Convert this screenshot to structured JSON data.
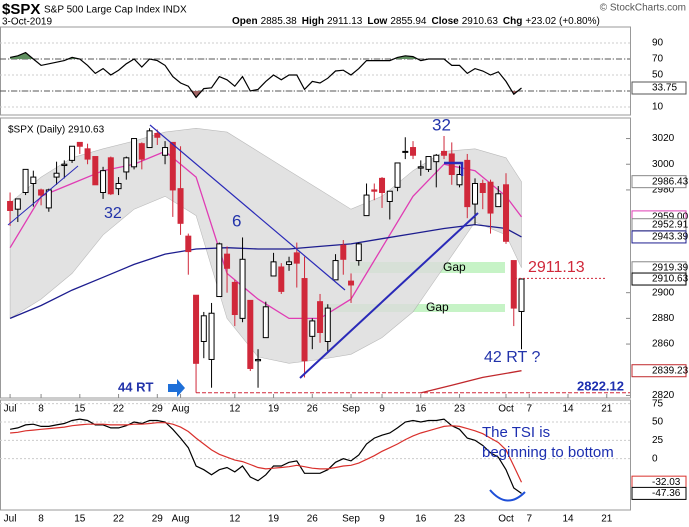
{
  "header": {
    "symbol": "$SPX",
    "name": "S&P 500 Large Cap Index INDX",
    "date": "3-Oct-2019",
    "quote": [
      [
        "Open",
        "2885.38"
      ],
      [
        "High",
        "2911.13"
      ],
      [
        "Low",
        "2855.94"
      ],
      [
        "Close",
        "2910.63"
      ],
      [
        "Chg",
        "+23.02 (+0.80%)"
      ]
    ],
    "credit": "© StockCharts.com"
  },
  "chart_data": [
    {
      "type": "line",
      "xlim": [
        -1.3,
        80
      ],
      "ylim": [
        0,
        110
      ],
      "yticks": [
        90,
        70,
        50,
        30,
        10
      ],
      "grid": true,
      "fill_levels": [
        70,
        30
      ],
      "fill_colors": [
        "#5f8f5f",
        "#a06464"
      ],
      "series": [
        {
          "color": "#000000",
          "values": [
            72,
            74,
            78,
            70,
            62,
            64,
            66,
            68,
            72,
            70,
            62,
            52,
            58,
            50,
            56,
            64,
            70,
            60,
            70,
            68,
            62,
            48,
            40,
            36,
            22,
            33,
            34,
            48,
            44,
            36,
            48,
            30,
            32,
            42,
            50,
            44,
            50,
            50,
            32,
            42,
            40,
            46,
            55,
            56,
            50,
            58,
            68,
            68,
            68,
            68,
            72,
            74,
            73,
            68,
            70,
            70,
            70,
            62,
            62,
            52,
            58,
            55,
            50,
            54,
            42,
            26,
            33.75
          ]
        }
      ],
      "axis_tags": [
        {
          "value": 33.75,
          "color": "#555555"
        }
      ]
    },
    {
      "type": "candlestick",
      "legend": "$SPX (Daily) 2910.63",
      "xlim": [
        -1.3,
        80
      ],
      "ylim": [
        2818,
        3036
      ],
      "xticks": [
        {
          "value": 0,
          "label": "Jul"
        },
        {
          "value": 4,
          "label": "8"
        },
        {
          "value": 9,
          "label": "15"
        },
        {
          "value": 14,
          "label": "22"
        },
        {
          "value": 19,
          "label": "29"
        },
        {
          "value": 22,
          "label": "Aug"
        },
        {
          "value": 29,
          "label": "12"
        },
        {
          "value": 34,
          "label": "19"
        },
        {
          "value": 39,
          "label": "26"
        },
        {
          "value": 44,
          "label": "Sep"
        },
        {
          "value": 48,
          "label": "9"
        },
        {
          "value": 53,
          "label": "16"
        },
        {
          "value": 58,
          "label": "23"
        },
        {
          "value": 64,
          "label": "Oct"
        },
        {
          "value": 67,
          "label": "7"
        },
        {
          "value": 72,
          "label": "14"
        },
        {
          "value": 77,
          "label": "21"
        }
      ],
      "yticks": [
        3020,
        3000,
        2980,
        2900,
        2880,
        2860,
        2820
      ],
      "up_color": "#000000",
      "down_color": "#d0283a",
      "open": [
        2971,
        2965,
        2978,
        2985,
        2980,
        2966,
        2990,
        2999,
        3003,
        3017,
        3012,
        3006,
        2978,
        3005,
        2981,
        2994,
        2998,
        3016,
        3013,
        3024,
        3007,
        3017,
        2981,
        2944,
        2898,
        2862,
        2848,
        2897,
        2930,
        2908,
        2880,
        2894,
        2847,
        2865,
        2913,
        2920,
        2922,
        2931,
        2911,
        2866,
        2893,
        2862,
        2910,
        2937,
        2909,
        2925,
        2960,
        2980,
        2989,
        2971,
        2982,
        3010,
        3013,
        2997,
        2996,
        3002,
        3010,
        3008,
        2984,
        3003,
        2969,
        2985,
        2986,
        2967,
        2984,
        2925,
        2885.38
      ],
      "high": [
        2978,
        2973,
        2996,
        2995,
        2981,
        2981,
        3002,
        3003,
        3014,
        3017,
        3016,
        3006,
        2998,
        3006,
        2990,
        3006,
        3020,
        3017,
        3028,
        3027,
        3018,
        3017,
        3014,
        2946,
        2898,
        2885,
        2892,
        2939,
        2936,
        2910,
        2943,
        2894,
        2856,
        2893,
        2931,
        2923,
        2928,
        2939,
        2928,
        2880,
        2899,
        2891,
        2930,
        2941,
        2915,
        2939,
        2985,
        2985,
        2990,
        2979,
        3001,
        3021,
        3018,
        3003,
        3006,
        3008,
        3022,
        3017,
        2999,
        3008,
        2989,
        2988,
        2988,
        2983,
        2993,
        2925,
        2911.13
      ],
      "low": [
        2952,
        2955,
        2976,
        2967,
        2968,
        2963,
        2984,
        2989,
        3001,
        3008,
        3000,
        2984,
        2973,
        2976,
        2976,
        2988,
        2996,
        2996,
        3013,
        3015,
        3000,
        2959,
        2945,
        2914,
        2822.12,
        2849,
        2826,
        2897,
        2900,
        2874,
        2877,
        2839,
        2826,
        2865,
        2913,
        2899,
        2917,
        2904,
        2834,
        2856,
        2861,
        2853,
        2910,
        2914,
        2892,
        2921,
        2960,
        2972,
        2966,
        2957,
        2979,
        3004,
        3004,
        2991,
        2994,
        2982,
        3004,
        2984,
        2982,
        2958,
        2953,
        2965,
        2946,
        2967,
        2938,
        2874,
        2855.94
      ],
      "close": [
        2964,
        2973,
        2996,
        2990,
        2976,
        2980,
        2993,
        3000,
        3014,
        3014,
        3004,
        2984,
        2995,
        2977,
        2985,
        3005,
        3020,
        3004,
        3026,
        3021,
        3013,
        2980,
        2954,
        2932,
        2845,
        2882,
        2884,
        2938,
        2919,
        2883,
        2926,
        2841,
        2848,
        2889,
        2924,
        2901,
        2924,
        2923,
        2847,
        2878,
        2869,
        2888,
        2925,
        2926,
        2906,
        2938,
        2976,
        2979,
        2978,
        2979,
        3001,
        3010,
        3007,
        2998,
        3006,
        3007,
        3007,
        2992,
        2992,
        2967,
        2985,
        2978,
        2962,
        2977,
        2940,
        2888,
        2910.63
      ],
      "band": {
        "color": "#dcdcdc",
        "x": [
          0,
          4,
          8,
          12,
          16,
          20,
          24,
          28,
          32,
          36,
          40,
          44,
          48,
          52,
          56,
          60,
          64,
          66
        ],
        "upper": [
          2970,
          2990,
          3005,
          3012,
          3018,
          3025,
          3028,
          3025,
          3010,
          2995,
          2980,
          2965,
          2975,
          2995,
          3010,
          3012,
          3005,
          2986.43
        ],
        "lower": [
          2880,
          2895,
          2915,
          2945,
          2965,
          2975,
          2960,
          2880,
          2850,
          2845,
          2848,
          2852,
          2865,
          2885,
          2920,
          2955,
          2945,
          2919.39
        ]
      },
      "overlays": [
        {
          "color": "#e03cb4",
          "x": [
            0,
            4,
            8,
            12,
            16,
            20,
            24,
            28,
            32,
            36,
            40,
            44,
            48,
            52,
            56,
            60,
            64,
            66
          ],
          "values": [
            2935,
            2975,
            2985,
            2995,
            3000,
            3010,
            2990,
            2915,
            2895,
            2880,
            2880,
            2895,
            2935,
            2975,
            3000,
            2995,
            2975,
            2959
          ]
        },
        {
          "color": "#1d1d8f",
          "x": [
            0,
            4,
            8,
            12,
            16,
            20,
            24,
            28,
            32,
            36,
            40,
            44,
            48,
            52,
            56,
            60,
            64,
            66
          ],
          "values": [
            2880,
            2890,
            2902,
            2912,
            2922,
            2930,
            2934,
            2935,
            2934,
            2934,
            2936,
            2938,
            2942,
            2946,
            2950,
            2953,
            2950,
            2943.39
          ]
        },
        {
          "color": "#c0282c",
          "x": [
            53,
            57,
            61,
            66
          ],
          "values": [
            2822,
            2828,
            2834,
            2839.23
          ]
        }
      ],
      "axis_tags": [
        {
          "value": 2986.43,
          "color": "#888888"
        },
        {
          "value": 2959,
          "label": "2959.00",
          "color": "#e03cb4"
        },
        {
          "value": 2952.91,
          "color": "#888888"
        },
        {
          "value": 2943.39,
          "color": "#1d1d8f"
        },
        {
          "value": 2919.39,
          "color": "#888888"
        },
        {
          "value": 2910.63,
          "color": "#000000"
        },
        {
          "value": 2839.23,
          "color": "#c0282c"
        }
      ],
      "levels": [
        {
          "value": 2911.13,
          "color": "#d0283a"
        },
        {
          "value": 2822.12,
          "color": "#1d2fb0"
        }
      ],
      "annotations": [
        "32",
        "6",
        "32",
        "44 RT",
        "Gap",
        "Gap",
        "42 RT ?"
      ]
    },
    {
      "type": "line",
      "xlim": [
        -1.3,
        80
      ],
      "ylim": [
        -70,
        80
      ],
      "yticks": [
        75,
        50,
        25,
        0
      ],
      "grid": true,
      "series": [
        {
          "color": "#000000",
          "values": [
            40,
            42,
            46,
            47,
            44,
            44,
            46,
            48,
            52,
            54,
            52,
            46,
            46,
            42,
            42,
            45,
            50,
            48,
            52,
            52,
            50,
            40,
            28,
            15,
            -10,
            -15,
            -22,
            -15,
            -12,
            -18,
            -10,
            -25,
            -30,
            -22,
            -10,
            -10,
            -5,
            -3,
            -20,
            -20,
            -20,
            -15,
            -5,
            0,
            -3,
            5,
            20,
            28,
            32,
            35,
            42,
            50,
            52,
            50,
            52,
            52,
            54,
            45,
            40,
            28,
            25,
            18,
            8,
            2,
            -15,
            -40,
            -47.36
          ]
        },
        {
          "color": "#d9302c",
          "values": [
            35,
            36,
            38,
            39,
            40,
            41,
            42,
            43,
            45,
            46,
            47,
            47,
            47,
            46,
            46,
            46,
            47,
            47,
            48,
            49,
            49,
            47,
            43,
            37,
            28,
            20,
            12,
            6,
            2,
            -2,
            -4,
            -8,
            -12,
            -14,
            -13,
            -12,
            -11,
            -9,
            -11,
            -13,
            -14,
            -14,
            -12,
            -10,
            -9,
            -6,
            -1,
            4,
            10,
            15,
            20,
            26,
            31,
            35,
            38,
            41,
            44,
            45,
            44,
            41,
            38,
            34,
            28,
            22,
            12,
            -10,
            -32.03
          ]
        }
      ],
      "axis_tags": [
        {
          "value": -32.03,
          "color": "#d9302c"
        },
        {
          "value": -47.36,
          "color": "#000000"
        }
      ],
      "annotations": [
        "The TSI is",
        "beginning to bottom"
      ]
    }
  ]
}
